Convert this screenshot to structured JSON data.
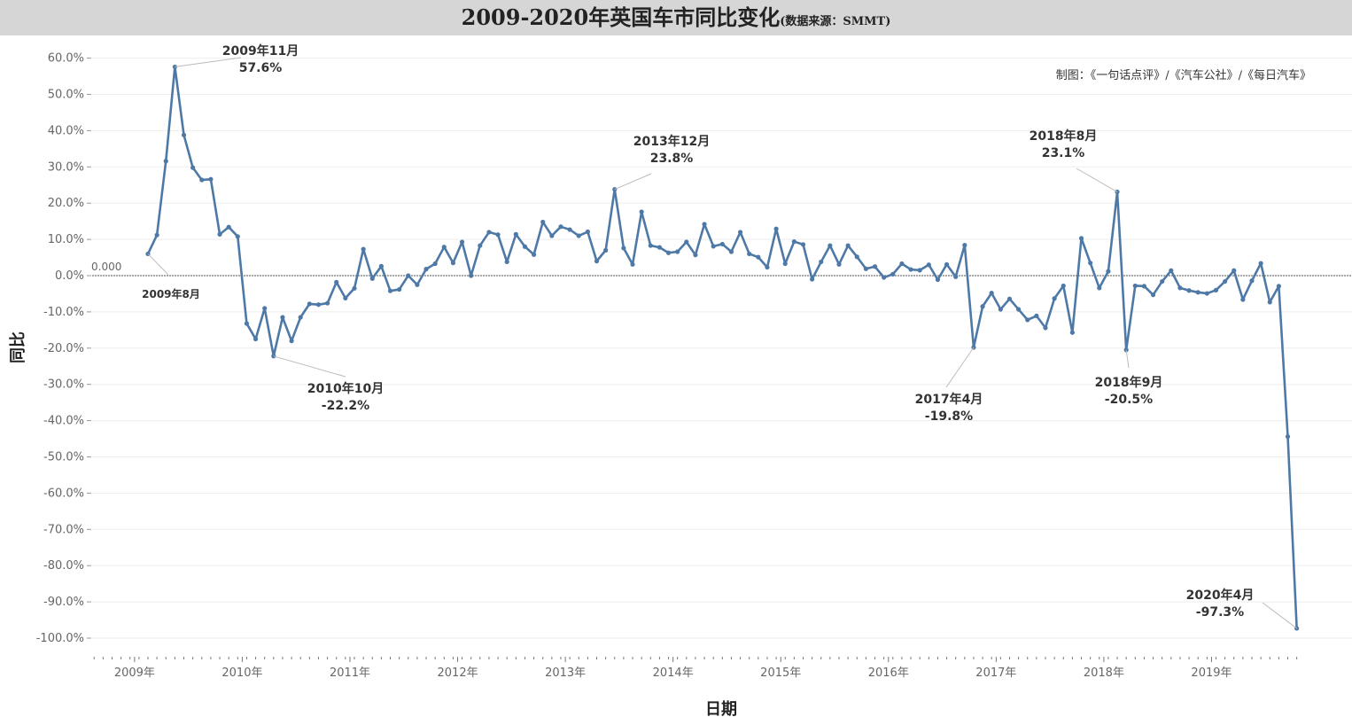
{
  "header": {
    "title": "2009-2020年英国车市同比变化",
    "subtitle": "(数据来源：SMMT)",
    "credit": "制图：《一句话点评》/《汽车公社》/《每日汽车》"
  },
  "colors": {
    "line": "#4e79a7",
    "title_bg": "#d6d6d6",
    "grid": "#eeeeee",
    "ref": "#555555"
  },
  "chart_data": {
    "type": "line",
    "title": "2009-2020年英国车市同比变化",
    "xlabel": "日期",
    "ylabel": "同比",
    "ylim": [
      -100,
      60
    ],
    "y_ticks": [
      60,
      50,
      40,
      30,
      20,
      10,
      0,
      -10,
      -20,
      -30,
      -40,
      -50,
      -60,
      -70,
      -80,
      -90,
      -100
    ],
    "y_tick_labels": [
      "60.0%",
      "50.0%",
      "40.0%",
      "30.0%",
      "20.0%",
      "10.0%",
      "0.0%",
      "-10.0%",
      "-20.0%",
      "-30.0%",
      "-40.0%",
      "-50.0%",
      "-60.0%",
      "-70.0%",
      "-80.0%",
      "-90.0%",
      "-100.0%"
    ],
    "x_tick_labels": [
      "2009年",
      "2010年",
      "2011年",
      "2012年",
      "2013年",
      "2014年",
      "2015年",
      "2016年",
      "2017年",
      "2018年",
      "2019年"
    ],
    "reference_line": {
      "value": 0,
      "label": "0.000"
    },
    "x_start": "2009-08",
    "x": [
      "2009-08",
      "2009-09",
      "2009-10",
      "2009-11",
      "2009-12",
      "2010-01",
      "2010-02",
      "2010-03",
      "2010-04",
      "2010-05",
      "2010-06",
      "2010-07",
      "2010-08",
      "2010-09",
      "2010-10",
      "2010-11",
      "2010-12",
      "2011-01",
      "2011-02",
      "2011-03",
      "2011-04",
      "2011-05",
      "2011-06",
      "2011-07",
      "2011-08",
      "2011-09",
      "2011-10",
      "2011-11",
      "2011-12",
      "2012-01",
      "2012-02",
      "2012-03",
      "2012-04",
      "2012-05",
      "2012-06",
      "2012-07",
      "2012-08",
      "2012-09",
      "2012-10",
      "2012-11",
      "2012-12",
      "2013-01",
      "2013-02",
      "2013-03",
      "2013-04",
      "2013-05",
      "2013-06",
      "2013-07",
      "2013-08",
      "2013-09",
      "2013-10",
      "2013-11",
      "2013-12",
      "2014-01",
      "2014-02",
      "2014-03",
      "2014-04",
      "2014-05",
      "2014-06",
      "2014-07",
      "2014-08",
      "2014-09",
      "2014-10",
      "2014-11",
      "2014-12",
      "2015-01",
      "2015-02",
      "2015-03",
      "2015-04",
      "2015-05",
      "2015-06",
      "2015-07",
      "2015-08",
      "2015-09",
      "2015-10",
      "2015-11",
      "2015-12",
      "2016-01",
      "2016-02",
      "2016-03",
      "2016-04",
      "2016-05",
      "2016-06",
      "2016-07",
      "2016-08",
      "2016-09",
      "2016-10",
      "2016-11",
      "2016-12",
      "2017-01",
      "2017-02",
      "2017-03",
      "2017-04",
      "2017-05",
      "2017-06",
      "2017-07",
      "2017-08",
      "2017-09",
      "2017-10",
      "2017-11",
      "2017-12",
      "2018-01",
      "2018-02",
      "2018-03",
      "2018-04",
      "2018-05",
      "2018-06",
      "2018-07",
      "2018-08",
      "2018-09",
      "2018-10",
      "2018-11",
      "2018-12",
      "2019-01",
      "2019-02",
      "2019-03",
      "2019-04",
      "2019-05",
      "2019-06",
      "2019-07",
      "2019-08",
      "2019-09",
      "2019-10",
      "2019-11",
      "2019-12",
      "2020-01",
      "2020-02",
      "2020-03",
      "2020-04"
    ],
    "series": [
      {
        "values": [
          6.0,
          11.2,
          31.6,
          57.6,
          38.8,
          29.8,
          26.4,
          26.6,
          11.4,
          13.4,
          10.8,
          -13.2,
          -17.5,
          -9.0,
          -22.2,
          -11.5,
          -18.0,
          -11.5,
          -7.8,
          -8.0,
          -7.6,
          -1.8,
          -6.2,
          -3.5,
          7.3,
          -0.8,
          2.6,
          -4.2,
          -3.8,
          0.0,
          -2.5,
          1.8,
          3.3,
          7.9,
          3.5,
          9.3,
          0.0,
          8.3,
          12.0,
          11.3,
          3.8,
          11.4,
          8.0,
          5.8,
          14.8,
          11.0,
          13.5,
          12.7,
          11.0,
          12.1,
          4.0,
          7.0,
          23.8,
          7.6,
          3.1,
          17.6,
          8.3,
          7.8,
          6.3,
          6.6,
          9.3,
          5.7,
          14.2,
          8.1,
          8.7,
          6.6,
          12.0,
          6.0,
          5.1,
          2.3,
          12.9,
          3.3,
          9.4,
          8.6,
          -1.0,
          3.8,
          8.3,
          3.1,
          8.3,
          5.2,
          1.9,
          2.5,
          -0.5,
          0.4,
          3.3,
          1.7,
          1.5,
          3.0,
          -1.1,
          3.1,
          -0.3,
          8.4,
          -19.8,
          -8.5,
          -4.8,
          -9.3,
          -6.4,
          -9.3,
          -12.2,
          -11.1,
          -14.4,
          -6.3,
          -2.8,
          -15.7,
          10.3,
          3.5,
          -3.4,
          1.2,
          23.1,
          -20.5,
          -2.8,
          -2.9,
          -5.3,
          -1.6,
          1.4,
          -3.4,
          -4.1,
          -4.6,
          -4.9,
          -4.0,
          -1.6,
          1.4,
          -6.6,
          -1.4,
          3.4,
          -7.3,
          -2.9,
          -44.4,
          -97.3
        ]
      }
    ],
    "annotations": [
      {
        "label": "2009年11月",
        "value": "57.6%"
      },
      {
        "label": "2010年10月",
        "value": "-22.2%"
      },
      {
        "label": "2013年12月",
        "value": "23.8%"
      },
      {
        "label": "2018年8月",
        "value": "23.1%"
      },
      {
        "label": "2017年4月",
        "value": "-19.8%"
      },
      {
        "label": "2018年9月",
        "value": "-20.5%"
      },
      {
        "label": "2020年4月",
        "value": "-97.3%"
      },
      {
        "label": "2009年8月",
        "value": ""
      }
    ]
  }
}
